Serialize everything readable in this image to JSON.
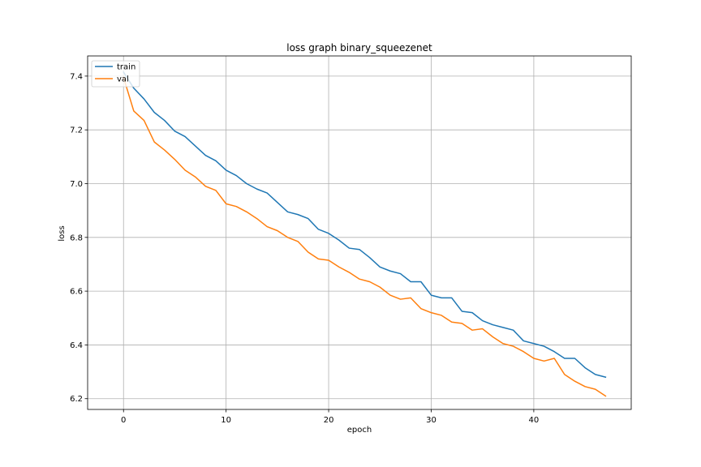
{
  "chart_data": {
    "type": "line",
    "title": "loss graph binary_squeezenet",
    "xlabel": "epoch",
    "ylabel": "loss",
    "xlim": [
      -3.5,
      49.5
    ],
    "ylim": [
      6.16,
      7.475
    ],
    "xticks": [
      0,
      10,
      20,
      30,
      40
    ],
    "yticks": [
      6.2,
      6.4,
      6.6,
      6.8,
      7.0,
      7.2,
      7.4
    ],
    "ytick_labels": [
      "6.2",
      "6.4",
      "6.6",
      "6.8",
      "7.0",
      "7.2",
      "7.4"
    ],
    "grid": true,
    "legend_position": "upper-left",
    "series": [
      {
        "name": "train",
        "color": "#1f77b4",
        "x": [
          0,
          1,
          2,
          3,
          4,
          5,
          6,
          7,
          8,
          9,
          10,
          11,
          12,
          13,
          14,
          15,
          16,
          17,
          18,
          19,
          20,
          21,
          22,
          23,
          24,
          25,
          26,
          27,
          28,
          29,
          30,
          31,
          32,
          33,
          34,
          35,
          36,
          37,
          38,
          39,
          40,
          41,
          42,
          43,
          44,
          45,
          46,
          47
        ],
        "values": [
          7.415,
          7.355,
          7.315,
          7.265,
          7.235,
          7.195,
          7.175,
          7.14,
          7.105,
          7.085,
          7.05,
          7.03,
          7.0,
          6.98,
          6.965,
          6.93,
          6.895,
          6.885,
          6.87,
          6.83,
          6.815,
          6.79,
          6.76,
          6.755,
          6.725,
          6.69,
          6.675,
          6.665,
          6.635,
          6.635,
          6.585,
          6.575,
          6.575,
          6.525,
          6.52,
          6.49,
          6.475,
          6.465,
          6.455,
          6.415,
          6.405,
          6.395,
          6.375,
          6.35,
          6.35,
          6.315,
          6.29,
          6.28
        ]
      },
      {
        "name": "val",
        "color": "#ff7f0e",
        "x": [
          0,
          1,
          2,
          3,
          4,
          5,
          6,
          7,
          8,
          9,
          10,
          11,
          12,
          13,
          14,
          15,
          16,
          17,
          18,
          19,
          20,
          21,
          22,
          23,
          24,
          25,
          26,
          27,
          28,
          29,
          30,
          31,
          32,
          33,
          34,
          35,
          36,
          37,
          38,
          39,
          40,
          41,
          42,
          43,
          44,
          45,
          46,
          47
        ],
        "values": [
          7.395,
          7.27,
          7.235,
          7.155,
          7.125,
          7.09,
          7.05,
          7.025,
          6.99,
          6.975,
          6.925,
          6.915,
          6.895,
          6.87,
          6.84,
          6.825,
          6.8,
          6.785,
          6.745,
          6.72,
          6.715,
          6.69,
          6.67,
          6.645,
          6.635,
          6.615,
          6.585,
          6.57,
          6.575,
          6.535,
          6.52,
          6.51,
          6.485,
          6.48,
          6.455,
          6.46,
          6.43,
          6.405,
          6.395,
          6.375,
          6.35,
          6.34,
          6.35,
          6.29,
          6.265,
          6.245,
          6.235,
          6.21
        ]
      }
    ]
  }
}
